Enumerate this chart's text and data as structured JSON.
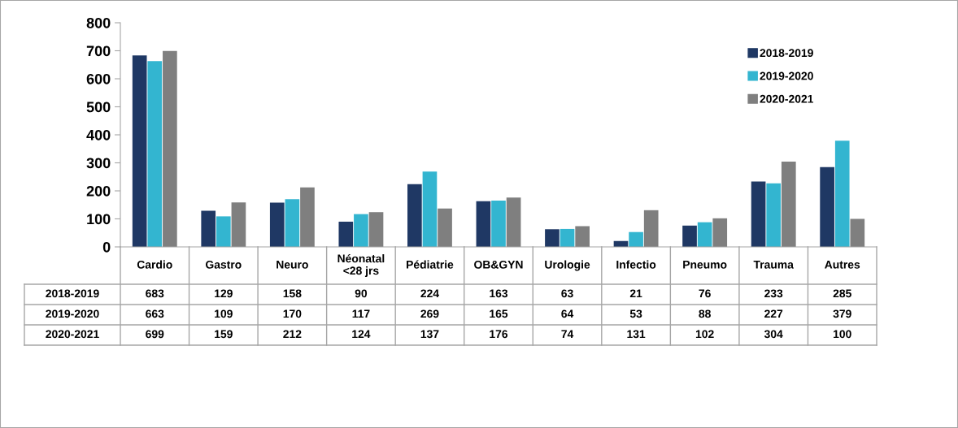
{
  "chart_data": {
    "type": "bar",
    "categories": [
      "Cardio",
      "Gastro",
      "Neuro",
      "Néonatal\n<28 jrs",
      "Pédiatrie",
      "OB&GYN",
      "Urologie",
      "Infectio",
      "Pneumo",
      "Trauma",
      "Autres"
    ],
    "series": [
      {
        "name": "2018-2019",
        "color": "#1f3864",
        "values": [
          683,
          129,
          158,
          90,
          224,
          163,
          63,
          21,
          76,
          233,
          285
        ]
      },
      {
        "name": "2019-2020",
        "color": "#33b5d0",
        "values": [
          663,
          109,
          170,
          117,
          269,
          165,
          64,
          53,
          88,
          227,
          379
        ]
      },
      {
        "name": "2020-2021",
        "color": "#7f7f7f",
        "values": [
          699,
          159,
          212,
          124,
          137,
          176,
          74,
          131,
          102,
          304,
          100
        ]
      }
    ],
    "ylim": [
      0,
      800
    ],
    "yticks": [
      0,
      100,
      200,
      300,
      400,
      500,
      600,
      700,
      800
    ],
    "grid": false,
    "legend": "top right",
    "data_labels": true
  }
}
